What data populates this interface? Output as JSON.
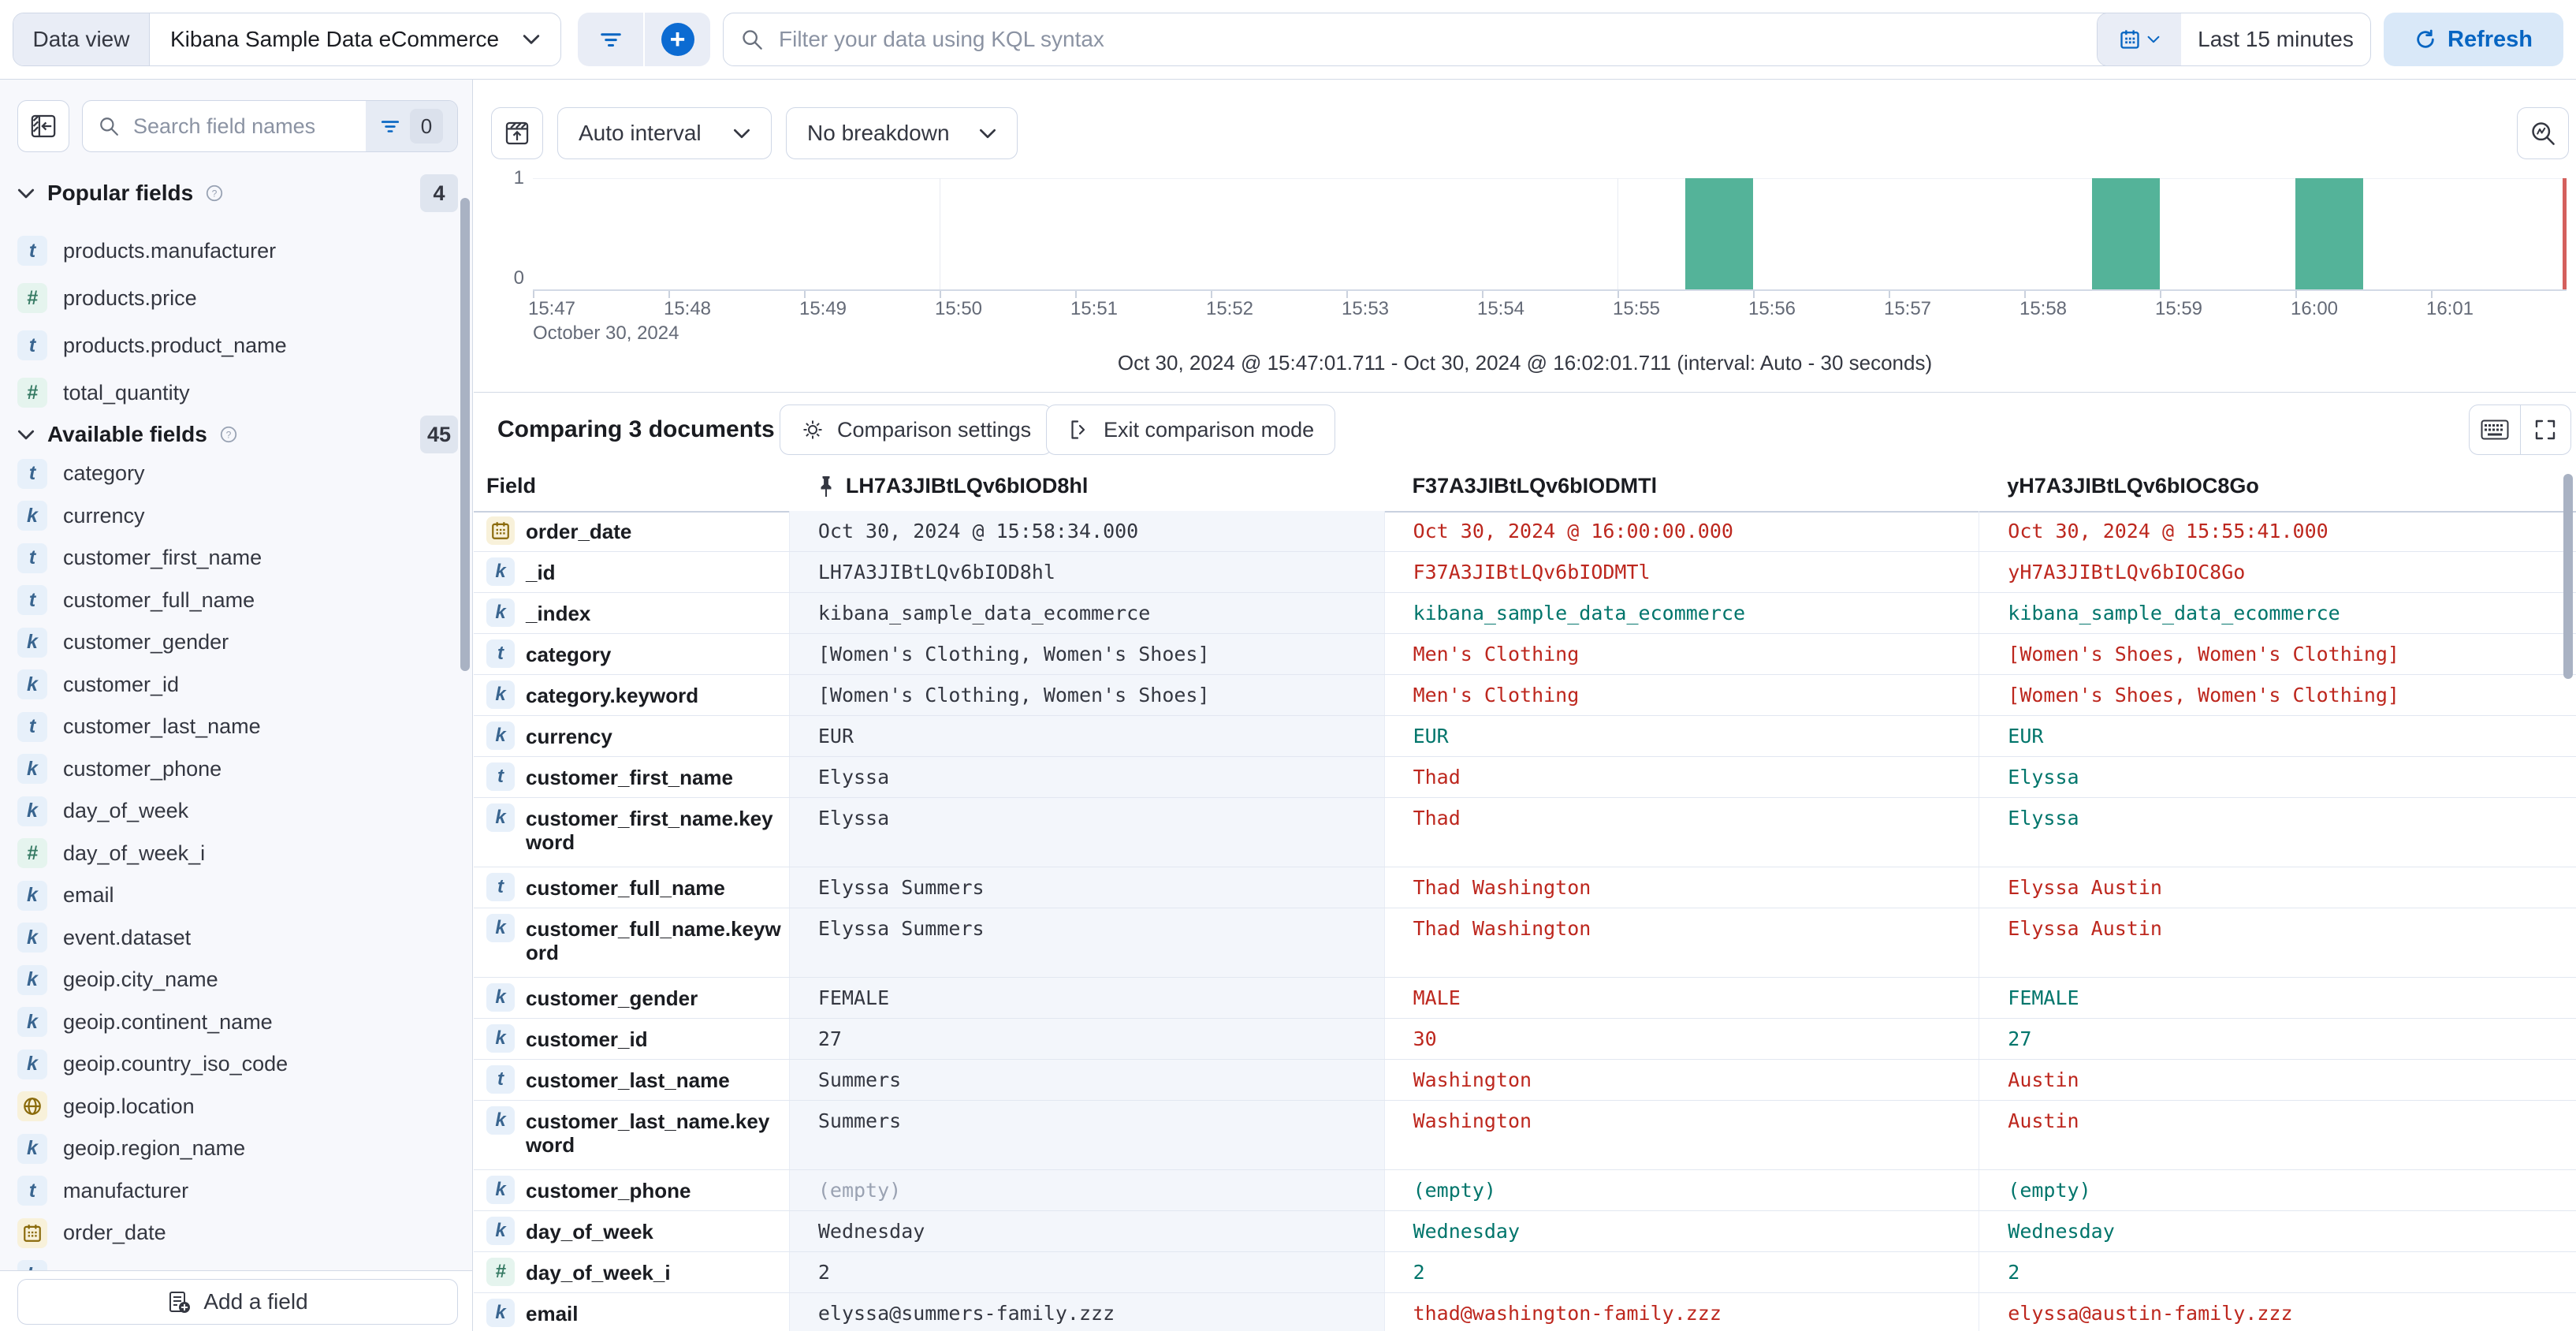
{
  "topbar": {
    "data_view_label": "Data view",
    "data_view_value": "Kibana Sample Data eCommerce",
    "kql_placeholder": "Filter your data using KQL syntax",
    "time_range": "Last 15 minutes",
    "refresh_label": "Refresh"
  },
  "sidebar": {
    "search_placeholder": "Search field names",
    "filter_count": "0",
    "popular": {
      "label": "Popular fields",
      "count": "4",
      "items": [
        {
          "name": "products.manufacturer",
          "type": "t"
        },
        {
          "name": "products.price",
          "type": "num"
        },
        {
          "name": "products.product_name",
          "type": "t"
        },
        {
          "name": "total_quantity",
          "type": "num"
        }
      ]
    },
    "available": {
      "label": "Available fields",
      "count": "45",
      "items": [
        {
          "name": "category",
          "type": "t"
        },
        {
          "name": "currency",
          "type": "k"
        },
        {
          "name": "customer_first_name",
          "type": "t"
        },
        {
          "name": "customer_full_name",
          "type": "t"
        },
        {
          "name": "customer_gender",
          "type": "k"
        },
        {
          "name": "customer_id",
          "type": "k"
        },
        {
          "name": "customer_last_name",
          "type": "t"
        },
        {
          "name": "customer_phone",
          "type": "k"
        },
        {
          "name": "day_of_week",
          "type": "k"
        },
        {
          "name": "day_of_week_i",
          "type": "num"
        },
        {
          "name": "email",
          "type": "k"
        },
        {
          "name": "event.dataset",
          "type": "k"
        },
        {
          "name": "geoip.city_name",
          "type": "k"
        },
        {
          "name": "geoip.continent_name",
          "type": "k"
        },
        {
          "name": "geoip.country_iso_code",
          "type": "k"
        },
        {
          "name": "geoip.location",
          "type": "geo"
        },
        {
          "name": "geoip.region_name",
          "type": "k"
        },
        {
          "name": "manufacturer",
          "type": "t"
        },
        {
          "name": "order_date",
          "type": "date"
        },
        {
          "name": "",
          "type": "k",
          "partial": true
        }
      ]
    },
    "add_field_label": "Add a field"
  },
  "chart": {
    "interval_label": "Auto interval",
    "breakdown_label": "No breakdown",
    "y_ticks": [
      "1",
      "0"
    ],
    "date_context": "October 30, 2024",
    "footer": "Oct 30, 2024 @ 15:47:01.711 - Oct 30, 2024 @ 16:02:01.711 (interval: Auto - 30 seconds)"
  },
  "chart_data": {
    "type": "bar",
    "title": "Document count over time",
    "x_range": [
      "15:47:00",
      "16:02:00"
    ],
    "x_ticks": [
      "15:47",
      "15:48",
      "15:49",
      "15:50",
      "15:51",
      "15:52",
      "15:53",
      "15:54",
      "15:55",
      "15:56",
      "15:57",
      "15:58",
      "15:59",
      "16:00",
      "16:01"
    ],
    "gridlines": [
      "15:50:00",
      "15:55:00",
      "16:00:00"
    ],
    "interval_seconds": 30,
    "buckets": [
      {
        "time": "15:55:30",
        "count": 1
      },
      {
        "time": "15:58:30",
        "count": 1
      },
      {
        "time": "16:00:00",
        "count": 1
      }
    ],
    "ylim": [
      0,
      1
    ],
    "ylabel": "",
    "xlabel": "October 30, 2024",
    "bar_color": "#54b399",
    "now_marker": "16:02:00",
    "now_color": "#d4605d",
    "legend": "off"
  },
  "comparison": {
    "title": "Comparing 3 documents",
    "settings": "Comparison settings",
    "exit": "Exit comparison mode"
  },
  "table": {
    "field_header": "Field",
    "docs": [
      "LH7A3JIBtLQv6bIOD8hl",
      "F37A3JIBtLQv6bIODMTl",
      "yH7A3JIBtLQv6bIOC8Go"
    ],
    "rows": [
      {
        "field": "order_date",
        "type": "date",
        "tall": false,
        "values": [
          [
            "Oct 30, 2024 @ 15:58:34.000",
            "base"
          ],
          [
            "Oct 30, 2024 @ 16:00:00.000",
            "diff"
          ],
          [
            "Oct 30, 2024 @ 15:55:41.000",
            "diff"
          ]
        ]
      },
      {
        "field": "_id",
        "type": "k",
        "tall": false,
        "values": [
          [
            "LH7A3JIBtLQv6bIOD8hl",
            "base"
          ],
          [
            "F37A3JIBtLQv6bIODMTl",
            "diff"
          ],
          [
            "yH7A3JIBtLQv6bIOC8Go",
            "diff"
          ]
        ]
      },
      {
        "field": "_index",
        "type": "k",
        "tall": false,
        "values": [
          [
            "kibana_sample_data_ecommerce",
            "base"
          ],
          [
            "kibana_sample_data_ecommerce",
            "match"
          ],
          [
            "kibana_sample_data_ecommerce",
            "match"
          ]
        ]
      },
      {
        "field": "category",
        "type": "t",
        "tall": false,
        "values": [
          [
            "[Women's Clothing, Women's Shoes]",
            "base"
          ],
          [
            "Men's Clothing",
            "diff"
          ],
          [
            "[Women's Shoes, Women's Clothing]",
            "diff"
          ]
        ]
      },
      {
        "field": "category.keyword",
        "type": "k",
        "tall": false,
        "values": [
          [
            "[Women's Clothing, Women's Shoes]",
            "base"
          ],
          [
            "Men's Clothing",
            "diff"
          ],
          [
            "[Women's Shoes, Women's Clothing]",
            "diff"
          ]
        ]
      },
      {
        "field": "currency",
        "type": "k",
        "tall": false,
        "values": [
          [
            "EUR",
            "base"
          ],
          [
            "EUR",
            "match"
          ],
          [
            "EUR",
            "match"
          ]
        ]
      },
      {
        "field": "customer_first_name",
        "type": "t",
        "tall": false,
        "values": [
          [
            "Elyssa",
            "base"
          ],
          [
            "Thad",
            "diff"
          ],
          [
            "Elyssa",
            "match"
          ]
        ]
      },
      {
        "field": "customer_first_name.keyword",
        "type": "k",
        "tall": true,
        "values": [
          [
            "Elyssa",
            "base"
          ],
          [
            "Thad",
            "diff"
          ],
          [
            "Elyssa",
            "match"
          ]
        ]
      },
      {
        "field": "customer_full_name",
        "type": "t",
        "tall": false,
        "values": [
          [
            "Elyssa Summers",
            "base"
          ],
          [
            "Thad Washington",
            "diff"
          ],
          [
            "Elyssa Austin",
            "diff"
          ]
        ]
      },
      {
        "field": "customer_full_name.keyword",
        "type": "k",
        "tall": true,
        "values": [
          [
            "Elyssa Summers",
            "base"
          ],
          [
            "Thad Washington",
            "diff"
          ],
          [
            "Elyssa Austin",
            "diff"
          ]
        ]
      },
      {
        "field": "customer_gender",
        "type": "k",
        "tall": false,
        "values": [
          [
            "FEMALE",
            "base"
          ],
          [
            "MALE",
            "diff"
          ],
          [
            "FEMALE",
            "match"
          ]
        ]
      },
      {
        "field": "customer_id",
        "type": "k",
        "tall": false,
        "values": [
          [
            "27",
            "base"
          ],
          [
            "30",
            "diff"
          ],
          [
            "27",
            "match"
          ]
        ]
      },
      {
        "field": "customer_last_name",
        "type": "t",
        "tall": false,
        "values": [
          [
            "Summers",
            "base"
          ],
          [
            "Washington",
            "diff"
          ],
          [
            "Austin",
            "diff"
          ]
        ]
      },
      {
        "field": "customer_last_name.keyword",
        "type": "k",
        "tall": true,
        "values": [
          [
            "Summers",
            "base"
          ],
          [
            "Washington",
            "diff"
          ],
          [
            "Austin",
            "diff"
          ]
        ]
      },
      {
        "field": "customer_phone",
        "type": "k",
        "tall": false,
        "values": [
          [
            "(empty)",
            "empty"
          ],
          [
            "(empty)",
            "match"
          ],
          [
            "(empty)",
            "match"
          ]
        ]
      },
      {
        "field": "day_of_week",
        "type": "k",
        "tall": false,
        "values": [
          [
            "Wednesday",
            "base"
          ],
          [
            "Wednesday",
            "match"
          ],
          [
            "Wednesday",
            "match"
          ]
        ]
      },
      {
        "field": "day_of_week_i",
        "type": "num",
        "tall": false,
        "values": [
          [
            "2",
            "base"
          ],
          [
            "2",
            "match"
          ],
          [
            "2",
            "match"
          ]
        ]
      },
      {
        "field": "email",
        "type": "k",
        "tall": false,
        "values": [
          [
            "elyssa@summers-family.zzz",
            "base"
          ],
          [
            "thad@washington-family.zzz",
            "diff"
          ],
          [
            "elyssa@austin-family.zzz",
            "diff"
          ]
        ]
      }
    ]
  },
  "icons": {
    "bar_color": "#54b399",
    "diff_color": "#bd271e",
    "match_color": "#00756b",
    "primary_blue": "#0765c2"
  }
}
